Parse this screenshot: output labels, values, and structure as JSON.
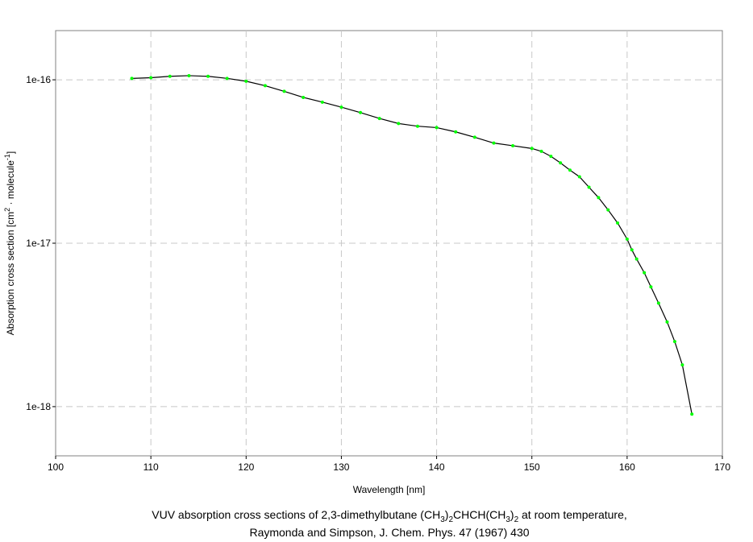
{
  "chart_data": {
    "type": "line",
    "xlabel": "Wavelength [nm]",
    "ylabel": [
      {
        "text": "Absorption cross section [cm"
      },
      {
        "text": "2",
        "sup": true
      },
      {
        "text": " · molecule"
      },
      {
        "text": "-1",
        "sup": true
      },
      {
        "text": "]"
      }
    ],
    "caption": [
      [
        {
          "text": "VUV absorption cross sections of 2,3-dimethylbutane (CH"
        },
        {
          "text": "3",
          "sub": true
        },
        {
          "text": ")"
        },
        {
          "text": "2",
          "sub": true
        },
        {
          "text": "CHCH(CH"
        },
        {
          "text": "3",
          "sub": true
        },
        {
          "text": ")"
        },
        {
          "text": "2",
          "sub": true
        },
        {
          "text": " at room temperature,"
        }
      ],
      [
        {
          "text": "Raymonda and Simpson, J. Chem. Phys. 47 (1967) 430"
        }
      ]
    ],
    "xlim": [
      100,
      170
    ],
    "xticks": [
      100,
      110,
      120,
      130,
      140,
      150,
      160,
      170
    ],
    "ylim": [
      5e-19,
      2e-16
    ],
    "yticks": [
      1e-18,
      1e-17,
      1e-16
    ],
    "log_y": true,
    "grid": true,
    "line_color": "#000000",
    "marker_color": "#00ff00",
    "x": [
      108,
      110,
      112,
      114,
      116,
      118,
      120,
      122,
      124,
      126,
      128,
      130,
      132,
      134,
      136,
      138,
      140,
      142,
      144,
      146,
      148,
      150,
      151,
      152,
      153,
      154,
      155,
      156,
      157,
      158,
      159,
      160,
      160.5,
      161,
      161.8,
      162.5,
      163.3,
      164.2,
      165,
      165.8,
      166.8
    ],
    "values": [
      1.02e-16,
      1.03e-16,
      1.05e-16,
      1.06e-16,
      1.05e-16,
      1.02e-16,
      9.8e-17,
      9.2e-17,
      8.5e-17,
      7.8e-17,
      7.3e-17,
      6.8e-17,
      6.3e-17,
      5.8e-17,
      5.4e-17,
      5.2e-17,
      5.1e-17,
      4.8e-17,
      4.45e-17,
      4.1e-17,
      3.95e-17,
      3.8e-17,
      3.65e-17,
      3.4e-17,
      3.1e-17,
      2.8e-17,
      2.55e-17,
      2.2e-17,
      1.9e-17,
      1.6e-17,
      1.33e-17,
      1.06e-17,
      9.1e-18,
      8e-18,
      6.6e-18,
      5.4e-18,
      4.3e-18,
      3.3e-18,
      2.5e-18,
      1.8e-18,
      9e-19
    ]
  }
}
